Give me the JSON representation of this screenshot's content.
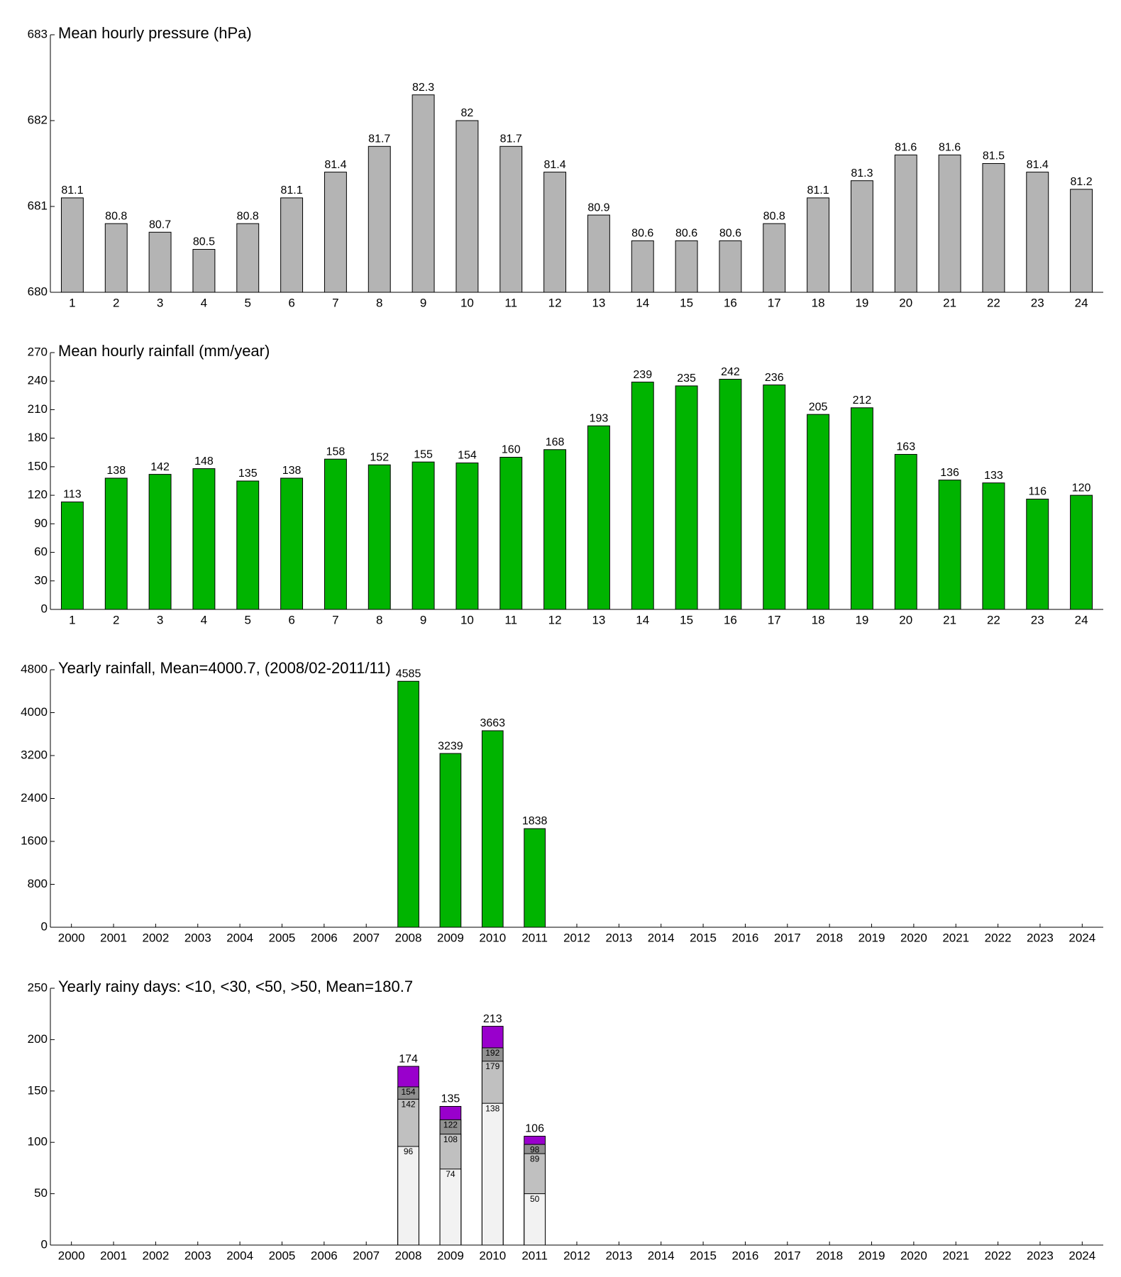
{
  "chart_data": [
    {
      "type": "bar",
      "title": "Mean hourly pressure (hPa)",
      "categories": [
        "1",
        "2",
        "3",
        "4",
        "5",
        "6",
        "7",
        "8",
        "9",
        "10",
        "11",
        "12",
        "13",
        "14",
        "15",
        "16",
        "17",
        "18",
        "19",
        "20",
        "21",
        "22",
        "23",
        "24"
      ],
      "values": [
        681.1,
        680.8,
        680.7,
        680.5,
        680.8,
        681.1,
        681.4,
        681.7,
        682.3,
        682.0,
        681.7,
        681.4,
        680.9,
        680.6,
        680.6,
        680.6,
        680.8,
        681.1,
        681.3,
        681.6,
        681.6,
        681.5,
        681.4,
        681.2
      ],
      "value_labels": [
        "81.1",
        "80.8",
        "80.7",
        "80.5",
        "80.8",
        "81.1",
        "81.4",
        "81.7",
        "82.3",
        "82",
        "81.7",
        "81.4",
        "80.9",
        "80.6",
        "80.6",
        "80.6",
        "80.8",
        "81.1",
        "81.3",
        "81.6",
        "81.6",
        "81.5",
        "81.4",
        "81.2"
      ],
      "color": "#b4b4b4",
      "ylim": [
        680,
        683
      ],
      "yticks": [
        680,
        681,
        682,
        683
      ]
    },
    {
      "type": "bar",
      "title": "Mean hourly rainfall (mm/year)",
      "categories": [
        "1",
        "2",
        "3",
        "4",
        "5",
        "6",
        "7",
        "8",
        "9",
        "10",
        "11",
        "12",
        "13",
        "14",
        "15",
        "16",
        "17",
        "18",
        "19",
        "20",
        "21",
        "22",
        "23",
        "24"
      ],
      "values": [
        113,
        138,
        142,
        148,
        135,
        138,
        158,
        152,
        155,
        154,
        160,
        168,
        193,
        239,
        235,
        242,
        236,
        205,
        212,
        163,
        136,
        133,
        116,
        120
      ],
      "color": "#00b400",
      "ylim": [
        0,
        270
      ],
      "yticks": [
        0,
        30,
        60,
        90,
        120,
        150,
        180,
        210,
        240,
        270
      ]
    },
    {
      "type": "bar",
      "title": "Yearly rainfall, Mean=4000.7, (2008/02-2011/11)",
      "categories": [
        "2000",
        "2001",
        "2002",
        "2003",
        "2004",
        "2005",
        "2006",
        "2007",
        "2008",
        "2009",
        "2010",
        "2011",
        "2012",
        "2013",
        "2014",
        "2015",
        "2016",
        "2017",
        "2018",
        "2019",
        "2020",
        "2021",
        "2022",
        "2023",
        "2024"
      ],
      "values": [
        null,
        null,
        null,
        null,
        null,
        null,
        null,
        null,
        4585,
        3239,
        3663,
        1838,
        null,
        null,
        null,
        null,
        null,
        null,
        null,
        null,
        null,
        null,
        null,
        null,
        null
      ],
      "color": "#00b400",
      "ylim": [
        0,
        4800
      ],
      "yticks": [
        0,
        800,
        1600,
        2400,
        3200,
        4000,
        4800
      ]
    },
    {
      "type": "overlapped_bar",
      "title": "Yearly rainy days: <10, <30, <50, >50, Mean=180.7",
      "categories": [
        "2000",
        "2001",
        "2002",
        "2003",
        "2004",
        "2005",
        "2006",
        "2007",
        "2008",
        "2009",
        "2010",
        "2011",
        "2012",
        "2013",
        "2014",
        "2015",
        "2016",
        "2017",
        "2018",
        "2019",
        "2020",
        "2021",
        "2022",
        "2023",
        "2024"
      ],
      "series": [
        {
          "color": "#f2f2f2",
          "values": [
            null,
            null,
            null,
            null,
            null,
            null,
            null,
            null,
            96,
            74,
            138,
            50,
            null,
            null,
            null,
            null,
            null,
            null,
            null,
            null,
            null,
            null,
            null,
            null,
            null
          ]
        },
        {
          "color": "#c0c0c0",
          "values": [
            null,
            null,
            null,
            null,
            null,
            null,
            null,
            null,
            142,
            108,
            179,
            89,
            null,
            null,
            null,
            null,
            null,
            null,
            null,
            null,
            null,
            null,
            null,
            null,
            null
          ]
        },
        {
          "color": "#909090",
          "values": [
            null,
            null,
            null,
            null,
            null,
            null,
            null,
            null,
            154,
            122,
            192,
            98,
            null,
            null,
            null,
            null,
            null,
            null,
            null,
            null,
            null,
            null,
            null,
            null,
            null
          ]
        },
        {
          "color": "#9900cc",
          "values": [
            null,
            null,
            null,
            null,
            null,
            null,
            null,
            null,
            174,
            135,
            213,
            106,
            null,
            null,
            null,
            null,
            null,
            null,
            null,
            null,
            null,
            null,
            null,
            null,
            null
          ]
        }
      ],
      "ylim": [
        0,
        250
      ],
      "yticks": [
        0,
        50,
        100,
        150,
        200,
        250
      ]
    }
  ]
}
